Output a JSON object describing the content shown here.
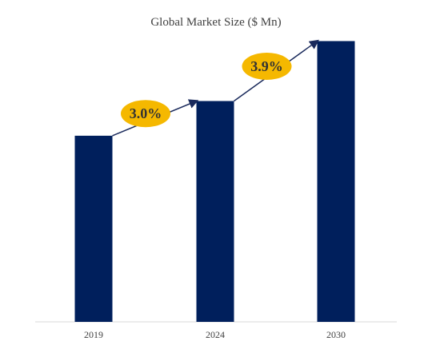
{
  "chart_data": {
    "type": "bar",
    "title": "Global Market Size ($ Mn)",
    "categories": [
      "2019",
      "2024",
      "2030"
    ],
    "values": [
      59,
      70,
      89
    ],
    "ylim": [
      0,
      100
    ],
    "xlabel": "",
    "ylabel": "",
    "grid": false,
    "legend": "none",
    "bar_color": "#001f5c",
    "annotations": [
      {
        "text": "3.0%",
        "from": "2019",
        "to": "2024"
      },
      {
        "text": "3.9%",
        "from": "2024",
        "to": "2030"
      }
    ],
    "annotation_color": "#f5b800",
    "arrow_color": "#1a2a5c"
  }
}
